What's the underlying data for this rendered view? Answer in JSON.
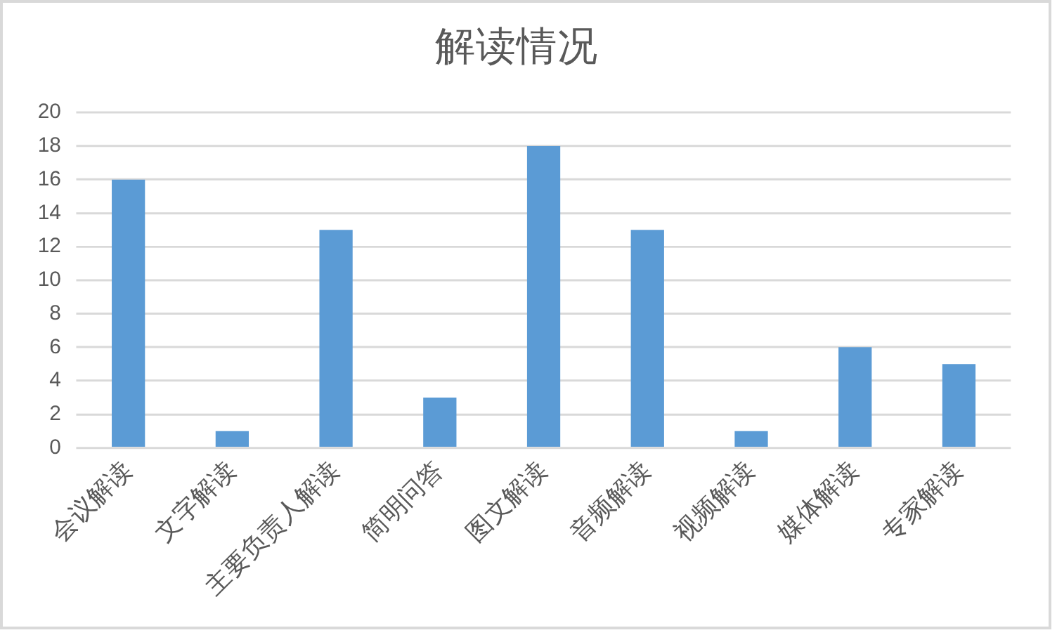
{
  "chart_data": {
    "type": "bar",
    "title": "解读情况",
    "categories": [
      "会议解读",
      "文字解读",
      "主要负责人解读",
      "简明问答",
      "图文解读",
      "音频解读",
      "视频解读",
      "媒体解读",
      "专家解读"
    ],
    "values": [
      16,
      1,
      13,
      3,
      18,
      13,
      1,
      6,
      5
    ],
    "color": "#5b9bd5",
    "ylim": [
      0,
      20
    ],
    "yticks": [
      0,
      2,
      4,
      6,
      8,
      10,
      12,
      14,
      16,
      18,
      20
    ],
    "grid": "y"
  }
}
